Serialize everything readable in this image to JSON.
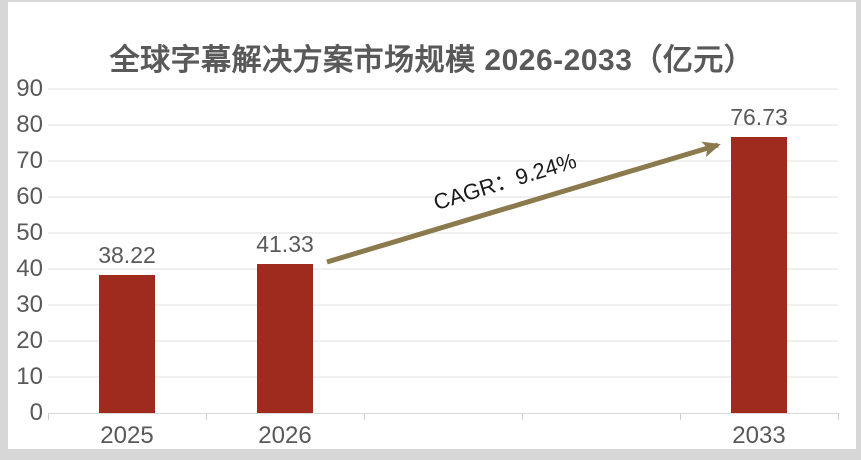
{
  "frame": {
    "background": "#D7D7D7",
    "card_background": "#FFFFFF"
  },
  "chart_data": {
    "type": "bar",
    "title": "全球字幕解决方案市场规模 2026-2033（亿元）",
    "categories": [
      "2025",
      "2026",
      "2033"
    ],
    "values": [
      38.22,
      41.33,
      76.73
    ],
    "value_labels": [
      "38.22",
      "41.33",
      "76.73"
    ],
    "category_slots": [
      0,
      1,
      4
    ],
    "slot_count": 5,
    "ylim": [
      0,
      90
    ],
    "yticks": [
      0,
      10,
      20,
      30,
      40,
      50,
      60,
      70,
      80,
      90
    ],
    "grid": true,
    "legend": "none",
    "annotation": {
      "text": "CAGR：9.24%"
    },
    "colors": {
      "bar": "#9E2B1E",
      "arrow": "#8A7A4D",
      "title_text": "#595959",
      "axis_text": "#595959",
      "label_text": "#595959",
      "annotation_text": "#1A1A1A",
      "gridline": "#F0F0F0",
      "axis_line": "#D9D9D9",
      "tick": "#CFCFCF",
      "frame": "#D7D7D7",
      "card_background": "#FFFFFF"
    }
  }
}
